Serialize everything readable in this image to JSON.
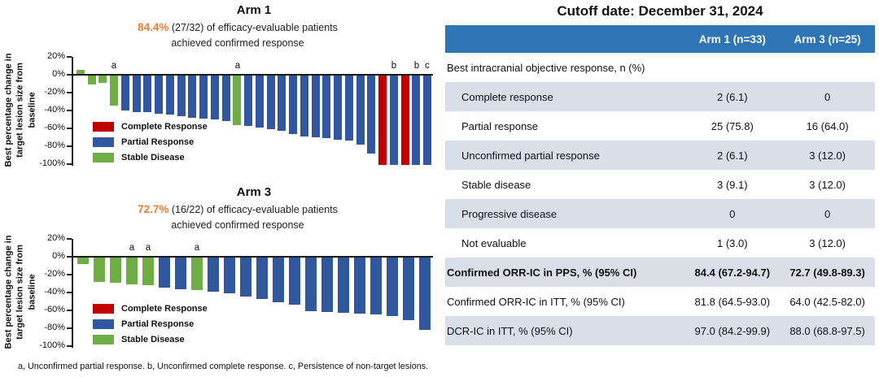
{
  "colors": {
    "complete_response": "#C00000",
    "partial_response": "#31579E",
    "stable_disease": "#6FAD46",
    "highlight_orange": "#ED7D31",
    "table_header_bg": "#2E75B6",
    "table_shaded_row_bg": "#D9DFE8",
    "axis_line": "#1a1a1a"
  },
  "footnote": "a, Unconfirmed partial response. b, Unconfirmed complete response. c, Persistence of non-target lesions.",
  "chart_data": [
    {
      "type": "bar",
      "title": "Arm 1",
      "highlight_pct": "84.4%",
      "subtitle_line1": "(27/32) of efficacy-evaluable patients",
      "subtitle_line2": "achieved confirmed response",
      "xlabel": "",
      "ylabel": "Best percentage change in target lesion size from baseline",
      "ylim": [
        -100,
        20
      ],
      "yticks": [
        20,
        0,
        -20,
        -40,
        -60,
        -80,
        -100
      ],
      "ytick_labels": [
        "20%",
        "0%",
        "-20%",
        "-40%",
        "-60%",
        "-80%",
        "-100%"
      ],
      "grid": false,
      "legend_position": "lower-left-inside",
      "legend": [
        {
          "label": "Complete Response",
          "category": "complete_response"
        },
        {
          "label": "Partial Response",
          "category": "partial_response"
        },
        {
          "label": "Stable Disease",
          "category": "stable_disease"
        }
      ],
      "bars": [
        {
          "value": 5,
          "category": "stable_disease"
        },
        {
          "value": -10,
          "category": "stable_disease"
        },
        {
          "value": -8,
          "category": "stable_disease"
        },
        {
          "value": -34,
          "category": "stable_disease",
          "note": "a"
        },
        {
          "value": -39,
          "category": "partial_response"
        },
        {
          "value": -41,
          "category": "partial_response"
        },
        {
          "value": -41,
          "category": "partial_response"
        },
        {
          "value": -43,
          "category": "partial_response"
        },
        {
          "value": -44,
          "category": "partial_response"
        },
        {
          "value": -45,
          "category": "partial_response"
        },
        {
          "value": -47,
          "category": "partial_response"
        },
        {
          "value": -48,
          "category": "partial_response"
        },
        {
          "value": -49,
          "category": "partial_response"
        },
        {
          "value": -51,
          "category": "partial_response"
        },
        {
          "value": -55,
          "category": "stable_disease",
          "note": "a"
        },
        {
          "value": -56,
          "category": "partial_response"
        },
        {
          "value": -58,
          "category": "partial_response"
        },
        {
          "value": -60,
          "category": "partial_response"
        },
        {
          "value": -62,
          "category": "partial_response"
        },
        {
          "value": -65,
          "category": "partial_response"
        },
        {
          "value": -68,
          "category": "partial_response"
        },
        {
          "value": -69,
          "category": "partial_response"
        },
        {
          "value": -70,
          "category": "partial_response"
        },
        {
          "value": -72,
          "category": "partial_response"
        },
        {
          "value": -73,
          "category": "partial_response"
        },
        {
          "value": -77,
          "category": "partial_response"
        },
        {
          "value": -87,
          "category": "partial_response"
        },
        {
          "value": -100,
          "category": "complete_response"
        },
        {
          "value": -100,
          "category": "partial_response",
          "note": "b"
        },
        {
          "value": -100,
          "category": "complete_response"
        },
        {
          "value": -100,
          "category": "partial_response",
          "note": "b"
        },
        {
          "value": -100,
          "category": "partial_response",
          "note": "c"
        }
      ]
    },
    {
      "type": "bar",
      "title": "Arm 3",
      "highlight_pct": "72.7%",
      "subtitle_line1": "(16/22) of efficacy-evaluable patients",
      "subtitle_line2": "achieved confirmed response",
      "xlabel": "",
      "ylabel": "Best percentage change in target lesion size from baseline",
      "ylim": [
        -100,
        20
      ],
      "yticks": [
        20,
        0,
        -20,
        -40,
        -60,
        -80,
        -100
      ],
      "ytick_labels": [
        "20%",
        "0%",
        "-20%",
        "-40%",
        "-60%",
        "-80%",
        "-100%"
      ],
      "grid": false,
      "legend_position": "lower-left-inside",
      "legend": [
        {
          "label": "Complete Response",
          "category": "complete_response"
        },
        {
          "label": "Partial Response",
          "category": "partial_response"
        },
        {
          "label": "Stable Disease",
          "category": "stable_disease"
        }
      ],
      "bars": [
        {
          "value": -7,
          "category": "stable_disease"
        },
        {
          "value": -27,
          "category": "stable_disease"
        },
        {
          "value": -28,
          "category": "stable_disease"
        },
        {
          "value": -30,
          "category": "stable_disease",
          "note": "a"
        },
        {
          "value": -31,
          "category": "stable_disease",
          "note": "a"
        },
        {
          "value": -34,
          "category": "partial_response"
        },
        {
          "value": -35,
          "category": "partial_response"
        },
        {
          "value": -36,
          "category": "stable_disease",
          "note": "a"
        },
        {
          "value": -38,
          "category": "partial_response"
        },
        {
          "value": -40,
          "category": "partial_response"
        },
        {
          "value": -44,
          "category": "partial_response"
        },
        {
          "value": -46,
          "category": "partial_response"
        },
        {
          "value": -50,
          "category": "partial_response"
        },
        {
          "value": -53,
          "category": "partial_response"
        },
        {
          "value": -60,
          "category": "partial_response"
        },
        {
          "value": -61,
          "category": "partial_response"
        },
        {
          "value": -62,
          "category": "partial_response"
        },
        {
          "value": -63,
          "category": "partial_response"
        },
        {
          "value": -64,
          "category": "partial_response"
        },
        {
          "value": -65,
          "category": "partial_response"
        },
        {
          "value": -70,
          "category": "partial_response"
        },
        {
          "value": -81,
          "category": "partial_response"
        }
      ]
    },
    {
      "type": "table",
      "title": "Cutoff date: December 31, 2024",
      "columns": [
        "",
        "Arm 1 (n=33)",
        "Arm 3 (n=25)"
      ],
      "rows": [
        {
          "label": "Best intracranial objective response, n (%)",
          "values": [
            "",
            ""
          ],
          "indent": false,
          "shaded": false,
          "bold": false
        },
        {
          "label": "Complete response",
          "values": [
            "2 (6.1)",
            "0"
          ],
          "indent": true,
          "shaded": true,
          "bold": false
        },
        {
          "label": "Partial response",
          "values": [
            "25 (75.8)",
            "16 (64.0)"
          ],
          "indent": true,
          "shaded": false,
          "bold": false
        },
        {
          "label": "Unconfirmed partial response",
          "values": [
            "2 (6.1)",
            "3 (12.0)"
          ],
          "indent": true,
          "shaded": true,
          "bold": false
        },
        {
          "label": "Stable disease",
          "values": [
            "3 (9.1)",
            "3 (12.0)"
          ],
          "indent": true,
          "shaded": false,
          "bold": false
        },
        {
          "label": "Progressive disease",
          "values": [
            "0",
            "0"
          ],
          "indent": true,
          "shaded": true,
          "bold": false
        },
        {
          "label": "Not evaluable",
          "values": [
            "1 (3.0)",
            "3 (12.0)"
          ],
          "indent": true,
          "shaded": false,
          "bold": false
        },
        {
          "label": "Confirmed ORR-IC in PPS, % (95% CI)",
          "values": [
            "84.4 (67.2-94.7)",
            "72.7 (49.8-89.3)"
          ],
          "indent": false,
          "shaded": true,
          "bold": true
        },
        {
          "label": "Confirmed ORR-IC in ITT, % (95% CI)",
          "values": [
            "81.8 (64.5-93.0)",
            "64.0 (42.5-82.0)"
          ],
          "indent": false,
          "shaded": false,
          "bold": false
        },
        {
          "label": "DCR-IC in ITT, % (95% CI)",
          "values": [
            "97.0 (84.2-99.9)",
            "88.0 (68.8-97.5)"
          ],
          "indent": false,
          "shaded": true,
          "bold": false
        }
      ]
    }
  ]
}
